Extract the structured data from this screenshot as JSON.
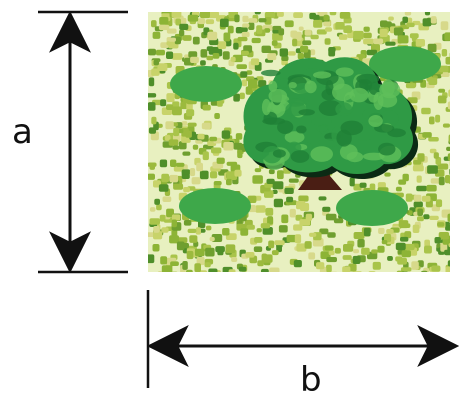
{
  "labels": {
    "height": "a",
    "width": "b"
  },
  "colors": {
    "ink": "#111111",
    "field_background": "#e8f0c0",
    "crown_dark": "#1f7f36",
    "crown_mid": "#2f9a45",
    "crown_light": "#5fbf5a",
    "trunk": "#4a1e14",
    "bush": "#3ea84a",
    "shadow": "#0b2a14"
  },
  "leaf_palette": [
    "#8db436",
    "#a9c44a",
    "#6f9f2f",
    "#c8d36a",
    "#4f8f2a",
    "#9cba3e",
    "#d7d98a"
  ]
}
